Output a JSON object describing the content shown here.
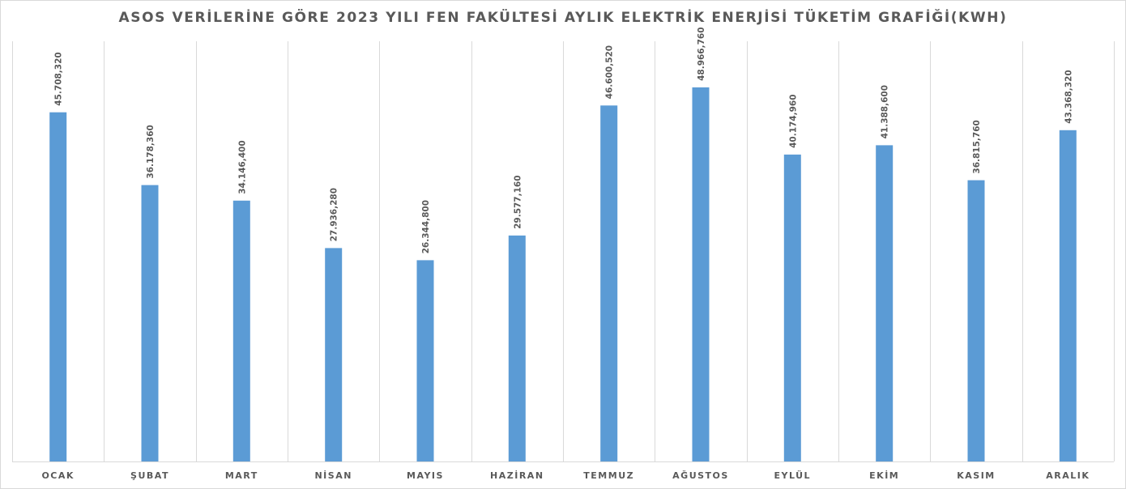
{
  "chart_data": {
    "type": "bar",
    "title": "ASOS VERİLERİNE GÖRE 2023 YILI FEN FAKÜLTESİ AYLIK ELEKTRİK ENERJİSİ TÜKETİM GRAFİĞİ(KWH)",
    "xlabel": "",
    "ylabel": "",
    "ylim": [
      0,
      55
    ],
    "grid": "vertical category separators",
    "legend": "none",
    "bar_color": "#5b9bd5",
    "categories": [
      "OCAK",
      "ŞUBAT",
      "MART",
      "NİSAN",
      "MAYIS",
      "HAZİRAN",
      "TEMMUZ",
      "AĞUSTOS",
      "EYLÜL",
      "EKİM",
      "KASIM",
      "ARALIK"
    ],
    "values": [
      45.70832,
      36.17836,
      34.1464,
      27.93628,
      26.3448,
      29.57716,
      46.60052,
      48.96676,
      40.17496,
      41.3886,
      36.81576,
      43.36832
    ],
    "data_labels": [
      "45.708,320",
      "36.178,360",
      "34.146,400",
      "27.936,280",
      "26.344,800",
      "29.577,160",
      "46.600,520",
      "48.966,760",
      "40.174,960",
      "41.388,600",
      "36.815,760",
      "43.368,320"
    ]
  }
}
